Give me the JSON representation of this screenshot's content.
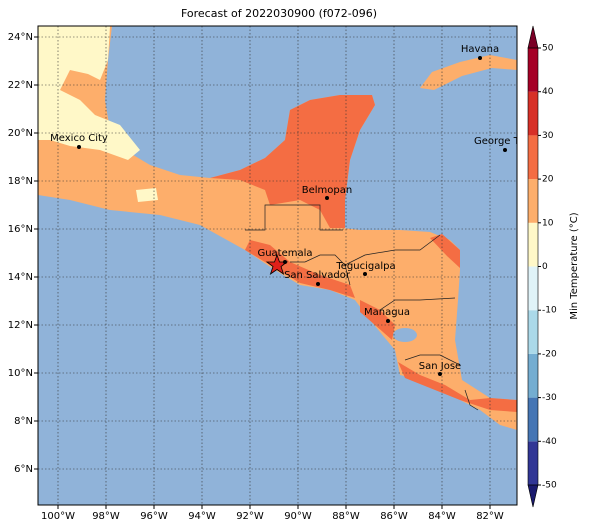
{
  "title": "Forecast of 2022030900 (f072-096)",
  "x_tick_labels": [
    "100°W",
    "98°W",
    "96°W",
    "94°W",
    "92°W",
    "90°W",
    "88°W",
    "86°W",
    "84°W",
    "82°W"
  ],
  "y_tick_labels": [
    "6°N",
    "8°N",
    "10°N",
    "12°N",
    "14°N",
    "16°N",
    "18°N",
    "20°N",
    "22°N",
    "24°N"
  ],
  "cities": [
    "Havana",
    "Mexico City",
    "George Tov",
    "Belmopan",
    "Guatemala",
    "San Salvador",
    "Tegucigalpa",
    "Managua",
    "San Jose"
  ],
  "colorbar": {
    "label": "Min Temperature (°C)",
    "ticks": [
      -50,
      -40,
      -30,
      -20,
      -10,
      0,
      10,
      20,
      30,
      40,
      50
    ],
    "colors": [
      "#313695",
      "#4575b4",
      "#74add1",
      "#abd9e9",
      "#e0f3f8",
      "#fff8c8",
      "#fdae6b",
      "#f46d43",
      "#d73027",
      "#a50026"
    ],
    "under_color": "#1a1a6e",
    "over_color": "#7a0026"
  }
}
